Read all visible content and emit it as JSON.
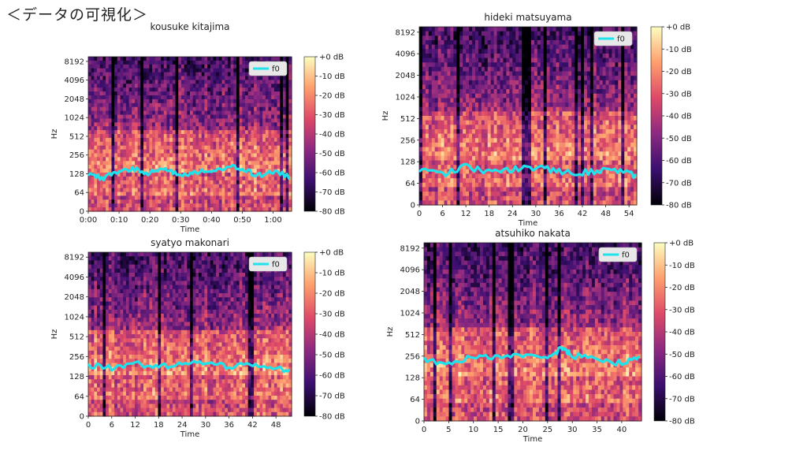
{
  "page_title": "＜データの可視化＞",
  "colormap": {
    "dark": "#000004",
    "mid1": "#3b0f70",
    "mid2": "#8c2981",
    "mid3": "#de4968",
    "mid4": "#fe9f6d",
    "light": "#fcfdbf"
  },
  "f0_color": "#1fe3ec",
  "chart_data": [
    {
      "type": "heatmap",
      "title": "kousuke kitajima",
      "xlabel": "Time",
      "ylabel": "Hz",
      "xticks": [
        "0:00",
        "0:10",
        "0:20",
        "0:30",
        "0:40",
        "0:50",
        "1:00"
      ],
      "xlim": [
        0,
        66
      ],
      "yticks": [
        "0",
        "64",
        "128",
        "256",
        "512",
        "1024",
        "2048",
        "4096",
        "8192"
      ],
      "colorbar": [
        "+0 dB",
        "-10 dB",
        "-20 dB",
        "-30 dB",
        "-40 dB",
        "-50 dB",
        "-60 dB",
        "-70 dB",
        "-80 dB"
      ],
      "legend": {
        "entries": [
          "f0"
        ],
        "placement": "top-right"
      },
      "f0": {
        "time": [
          0,
          5,
          10,
          15,
          20,
          25,
          30,
          35,
          40,
          45,
          50,
          55,
          60,
          66
        ],
        "hz": [
          120,
          110,
          140,
          150,
          130,
          160,
          120,
          140,
          130,
          170,
          150,
          120,
          140,
          110
        ]
      }
    },
    {
      "type": "heatmap",
      "title": "hideki matsuyama",
      "xlabel": "Time",
      "ylabel": "Hz",
      "xticks": [
        "0",
        "6",
        "12",
        "18",
        "24",
        "30",
        "36",
        "42",
        "48",
        "54"
      ],
      "xlim": [
        0,
        56
      ],
      "yticks": [
        "0",
        "64",
        "128",
        "256",
        "512",
        "1024",
        "2048",
        "4096",
        "8192"
      ],
      "colorbar": [
        "+0 dB",
        "-10 dB",
        "-20 dB",
        "-30 dB",
        "-40 dB",
        "-50 dB",
        "-60 dB",
        "-70 dB",
        "-80 dB"
      ],
      "legend": {
        "entries": [
          "f0"
        ],
        "placement": "top-right"
      },
      "f0": {
        "time": [
          0,
          6,
          12,
          18,
          24,
          30,
          36,
          42,
          48,
          54,
          56
        ],
        "hz": [
          95,
          85,
          110,
          90,
          100,
          105,
          95,
          90,
          100,
          90,
          80
        ]
      }
    },
    {
      "type": "heatmap",
      "title": "syatyo makonari",
      "xlabel": "Time",
      "ylabel": "Hz",
      "xticks": [
        "0",
        "6",
        "12",
        "18",
        "24",
        "30",
        "36",
        "42",
        "48"
      ],
      "xlim": [
        0,
        52
      ],
      "yticks": [
        "0",
        "64",
        "128",
        "256",
        "512",
        "1024",
        "2048",
        "4096",
        "8192"
      ],
      "colorbar": [
        "+0 dB",
        "-10 dB",
        "-20 dB",
        "-30 dB",
        "-40 dB",
        "-50 dB",
        "-60 dB",
        "-70 dB",
        "-80 dB"
      ],
      "legend": {
        "entries": [
          "f0"
        ],
        "placement": "top-right"
      },
      "f0": {
        "time": [
          0,
          6,
          12,
          18,
          24,
          30,
          36,
          42,
          48,
          52
        ],
        "hz": [
          190,
          170,
          200,
          180,
          190,
          210,
          180,
          200,
          170,
          160
        ]
      }
    },
    {
      "type": "heatmap",
      "title": "atsuhiko nakata",
      "xlabel": "Time",
      "ylabel": "Hz",
      "xticks": [
        "0",
        "5",
        "10",
        "15",
        "20",
        "25",
        "30",
        "35",
        "40"
      ],
      "xlim": [
        0,
        44
      ],
      "yticks": [
        "0",
        "64",
        "128",
        "256",
        "512",
        "1024",
        "2048",
        "4096",
        "8192"
      ],
      "colorbar": [
        "+0 dB",
        "-10 dB",
        "-20 dB",
        "-30 dB",
        "-40 dB",
        "-50 dB",
        "-60 dB",
        "-70 dB",
        "-80 dB"
      ],
      "legend": {
        "entries": [
          "f0"
        ],
        "placement": "top-right"
      },
      "f0": {
        "time": [
          0,
          5,
          10,
          15,
          20,
          25,
          28,
          30,
          35,
          40,
          44
        ],
        "hz": [
          230,
          200,
          260,
          250,
          270,
          240,
          330,
          260,
          240,
          200,
          250
        ]
      }
    }
  ]
}
